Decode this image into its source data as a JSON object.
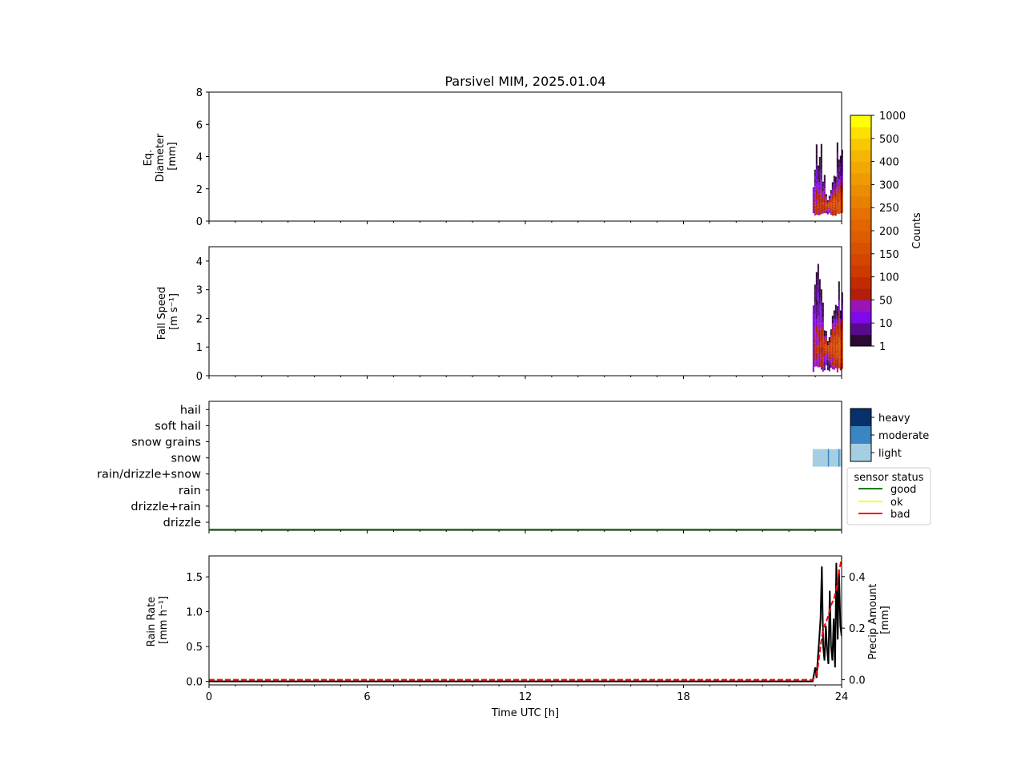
{
  "title": "Parsivel MIM, 2025.01.04",
  "chart_data": [
    {
      "type": "heatmap",
      "panel": "diameter",
      "ylabel_lines": [
        "Eq.",
        "Diameter",
        "[mm]"
      ],
      "xlim": [
        0,
        24
      ],
      "ylim": [
        0,
        8
      ],
      "yticks": [
        "0",
        "2",
        "4",
        "6",
        "8"
      ],
      "event": {
        "start_h": 22.9,
        "end_h": 24.0,
        "d_min_mm": 0.3,
        "d_max_mm": 6.0,
        "peak_count_d_mm": 1.0
      }
    },
    {
      "type": "heatmap",
      "panel": "fall_speed",
      "ylabel_lines": [
        "Fall Speed",
        "[m s⁻¹]"
      ],
      "xlim": [
        0,
        24
      ],
      "ylim": [
        0,
        4.5
      ],
      "yticks": [
        "0",
        "1",
        "2",
        "3",
        "4"
      ],
      "event": {
        "start_h": 22.9,
        "end_h": 24.0,
        "v_min": 0.1,
        "v_max": 4.0,
        "peak_count_v": 1.0
      }
    },
    {
      "type": "heatmap",
      "panel": "precip_type",
      "categories": [
        "drizzle",
        "drizzle+rain",
        "rain",
        "rain/drizzle+snow",
        "snow",
        "snow grains",
        "soft hail",
        "hail"
      ],
      "intensity_levels": [
        "light",
        "moderate",
        "heavy"
      ],
      "intensity_colors": [
        "#a6cee3",
        "#3a86c2",
        "#08306b"
      ],
      "events": [
        {
          "category": "snow",
          "intensity": "light",
          "start_h": 22.9,
          "end_h": 24.0
        }
      ],
      "sensor_status": {
        "title": "sensor status",
        "entries": [
          {
            "label": "good",
            "color": "#008000"
          },
          {
            "label": "ok",
            "color": "#ffff00"
          },
          {
            "label": "bad",
            "color": "#ff0000"
          }
        ],
        "observed": "good"
      }
    },
    {
      "type": "line",
      "panel": "rain",
      "xlabel": "Time UTC [h]",
      "xticks": [
        "0",
        "6",
        "12",
        "18",
        "24"
      ],
      "xlim": [
        0,
        24
      ],
      "ylabel_lines": [
        "Rain Rate",
        "[mm h⁻¹]"
      ],
      "ylim": [
        -0.05,
        1.8
      ],
      "yticks": [
        "0.0",
        "0.5",
        "1.0",
        "1.5"
      ],
      "y2label_lines": [
        "Precip Amount",
        "[mm]"
      ],
      "y2lim": [
        -0.02,
        0.48
      ],
      "y2ticks": [
        "0.0",
        "0.2",
        "0.4"
      ],
      "series": [
        {
          "color": "#000000",
          "style": "solid",
          "axis": "left",
          "x": [
            0,
            22.9,
            23.0,
            23.05,
            23.1,
            23.15,
            23.2,
            23.25,
            23.3,
            23.35,
            23.4,
            23.45,
            23.5,
            23.55,
            23.6,
            23.65,
            23.7,
            23.75,
            23.8,
            23.85,
            23.9,
            23.95,
            24.0
          ],
          "y": [
            0.0,
            0.0,
            0.2,
            0.05,
            0.35,
            0.6,
            0.9,
            1.65,
            0.5,
            0.3,
            0.8,
            0.45,
            0.25,
            1.3,
            0.5,
            0.3,
            0.9,
            0.2,
            1.7,
            0.6,
            1.6,
            0.8,
            0.65
          ]
        },
        {
          "color": "#ff0000",
          "style": "dashed",
          "axis": "right",
          "x": [
            0,
            22.9,
            23.0,
            23.1,
            23.2,
            23.3,
            23.4,
            23.5,
            23.6,
            23.7,
            23.8,
            23.9,
            24.0
          ],
          "y": [
            0.0,
            0.0,
            0.01,
            0.05,
            0.13,
            0.2,
            0.22,
            0.25,
            0.29,
            0.31,
            0.35,
            0.42,
            0.47
          ]
        }
      ]
    }
  ],
  "colorbar": {
    "label": "Counts",
    "ticks": [
      "1",
      "10",
      "50",
      "100",
      "150",
      "200",
      "250",
      "300",
      "400",
      "500",
      "1000"
    ],
    "colors": [
      "#2b0a33",
      "#580a8c",
      "#7d0ae8",
      "#9a14b8",
      "#b31e0a",
      "#c22b00",
      "#cc3a00",
      "#d34500",
      "#d95000",
      "#de5c00",
      "#e26500",
      "#e57200",
      "#e88000",
      "#eb8d00",
      "#ee9a00",
      "#f1a800",
      "#f4b600",
      "#f7c800",
      "#fbe000",
      "#ffff00"
    ]
  }
}
